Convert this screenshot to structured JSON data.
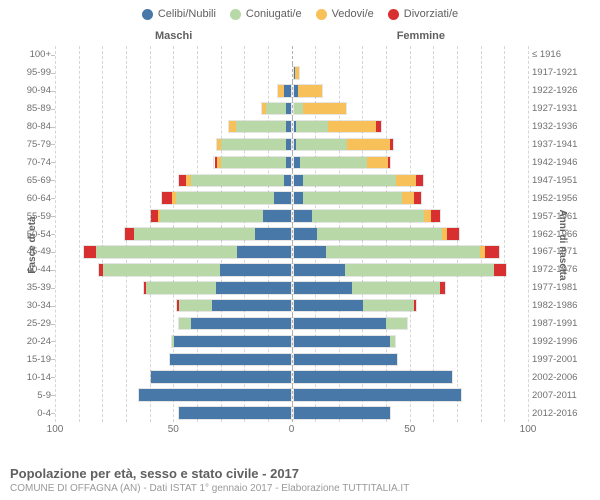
{
  "legend": [
    {
      "label": "Celibi/Nubili",
      "color": "#4878a8"
    },
    {
      "label": "Coniugati/e",
      "color": "#b8d8a8"
    },
    {
      "label": "Vedovi/e",
      "color": "#f8c058"
    },
    {
      "label": "Divorziati/e",
      "color": "#d83030"
    }
  ],
  "gender_left": "Maschi",
  "gender_right": "Femmine",
  "y_left_title": "Fasce di età",
  "y_right_title": "Anni di nascita",
  "x_max": 100,
  "x_ticks_left": [
    100,
    50,
    0
  ],
  "x_ticks_right": [
    50,
    100
  ],
  "grid_step": 10,
  "title": "Popolazione per età, sesso e stato civile - 2017",
  "subtitle": "COMUNE DI OFFAGNA (AN) - Dati ISTAT 1° gennaio 2017 - Elaborazione TUTTITALIA.IT",
  "colors": {
    "background": "#ffffff",
    "text": "#606060",
    "grid": "#d6d6d6",
    "center_line": "#b0b0b0"
  },
  "rows": [
    {
      "age": "100+",
      "birth": "≤ 1916",
      "m": [
        0,
        0,
        0,
        0
      ],
      "f": [
        0,
        0,
        0,
        0
      ]
    },
    {
      "age": "95-99",
      "birth": "1917-1921",
      "m": [
        0,
        0,
        0,
        0
      ],
      "f": [
        1,
        0,
        2,
        0
      ]
    },
    {
      "age": "90-94",
      "birth": "1922-1926",
      "m": [
        3,
        0,
        3,
        0
      ],
      "f": [
        2,
        0,
        11,
        0
      ]
    },
    {
      "age": "85-89",
      "birth": "1927-1931",
      "m": [
        2,
        9,
        2,
        0
      ],
      "f": [
        0,
        4,
        19,
        0
      ]
    },
    {
      "age": "80-84",
      "birth": "1932-1936",
      "m": [
        2,
        22,
        3,
        0
      ],
      "f": [
        1,
        14,
        21,
        2
      ]
    },
    {
      "age": "75-79",
      "birth": "1937-1941",
      "m": [
        2,
        28,
        2,
        0
      ],
      "f": [
        1,
        22,
        19,
        1
      ]
    },
    {
      "age": "70-74",
      "birth": "1942-1946",
      "m": [
        2,
        28,
        2,
        1
      ],
      "f": [
        3,
        29,
        9,
        1
      ]
    },
    {
      "age": "65-69",
      "birth": "1947-1951",
      "m": [
        3,
        40,
        2,
        3
      ],
      "f": [
        4,
        40,
        9,
        3
      ]
    },
    {
      "age": "60-64",
      "birth": "1952-1956",
      "m": [
        7,
        42,
        2,
        4
      ],
      "f": [
        4,
        43,
        5,
        3
      ]
    },
    {
      "age": "55-59",
      "birth": "1957-1961",
      "m": [
        12,
        44,
        1,
        3
      ],
      "f": [
        8,
        48,
        3,
        4
      ]
    },
    {
      "age": "50-54",
      "birth": "1962-1966",
      "m": [
        15,
        52,
        0,
        4
      ],
      "f": [
        10,
        54,
        2,
        5
      ]
    },
    {
      "age": "45-49",
      "birth": "1967-1971",
      "m": [
        23,
        60,
        0,
        5
      ],
      "f": [
        14,
        66,
        2,
        6
      ]
    },
    {
      "age": "40-44",
      "birth": "1972-1976",
      "m": [
        30,
        50,
        0,
        2
      ],
      "f": [
        22,
        64,
        0,
        5
      ]
    },
    {
      "age": "35-39",
      "birth": "1977-1981",
      "m": [
        32,
        30,
        0,
        1
      ],
      "f": [
        25,
        38,
        0,
        2
      ]
    },
    {
      "age": "30-34",
      "birth": "1982-1986",
      "m": [
        34,
        14,
        0,
        1
      ],
      "f": [
        30,
        22,
        0,
        1
      ]
    },
    {
      "age": "25-29",
      "birth": "1987-1991",
      "m": [
        43,
        5,
        0,
        0
      ],
      "f": [
        40,
        9,
        0,
        0
      ]
    },
    {
      "age": "20-24",
      "birth": "1992-1996",
      "m": [
        50,
        1,
        0,
        0
      ],
      "f": [
        42,
        2,
        0,
        0
      ]
    },
    {
      "age": "15-19",
      "birth": "1997-2001",
      "m": [
        52,
        0,
        0,
        0
      ],
      "f": [
        45,
        0,
        0,
        0
      ]
    },
    {
      "age": "10-14",
      "birth": "2002-2006",
      "m": [
        60,
        0,
        0,
        0
      ],
      "f": [
        68,
        0,
        0,
        0
      ]
    },
    {
      "age": "5-9",
      "birth": "2007-2011",
      "m": [
        65,
        0,
        0,
        0
      ],
      "f": [
        72,
        0,
        0,
        0
      ]
    },
    {
      "age": "0-4",
      "birth": "2012-2016",
      "m": [
        48,
        0,
        0,
        0
      ],
      "f": [
        42,
        0,
        0,
        0
      ]
    }
  ]
}
